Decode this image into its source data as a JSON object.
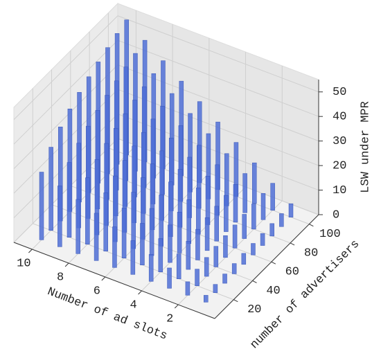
{
  "chart_data": {
    "type": "bar3d",
    "xlabel": "Number of ad slots",
    "ylabel": "number of advertisers",
    "zlabel": "LSW under MPR",
    "x": [
      1,
      2,
      3,
      4,
      5,
      6,
      7,
      8,
      9,
      10
    ],
    "y": [
      10,
      20,
      30,
      40,
      50,
      60,
      70,
      80,
      90,
      100
    ],
    "values": [
      [
        2.8,
        3.4,
        3.8,
        4.2,
        4.5,
        4.7,
        4.9,
        5.1,
        5.3,
        5.5
      ],
      [
        5.5,
        6.8,
        7.7,
        8.4,
        8.9,
        9.4,
        9.9,
        10.3,
        10.7,
        11
      ],
      [
        8.3,
        10.2,
        11.5,
        12.5,
        13.4,
        14.2,
        14.8,
        15.4,
        16,
        16.5
      ],
      [
        11,
        13.6,
        15.3,
        16.7,
        17.9,
        18.9,
        19.8,
        20.6,
        21.3,
        22
      ],
      [
        13.8,
        17,
        19.2,
        20.9,
        22.3,
        23.6,
        24.7,
        25.7,
        26.6,
        27.5
      ],
      [
        16.6,
        20.4,
        23,
        25.1,
        26.8,
        28.3,
        29.7,
        30.9,
        32,
        33
      ],
      [
        19.3,
        23.8,
        26.8,
        29.3,
        31.3,
        33,
        34.6,
        36,
        37.3,
        38.5
      ],
      [
        22.1,
        27.1,
        30.7,
        33.4,
        35.7,
        37.8,
        39.5,
        41.1,
        42.6,
        44
      ],
      [
        24.8,
        30.5,
        34.5,
        37.6,
        40.2,
        42.5,
        44.5,
        46.3,
        48,
        49.5
      ],
      [
        27.6,
        33.9,
        38.3,
        41.8,
        44.7,
        47.2,
        49.4,
        51.4,
        53.3,
        55
      ]
    ],
    "color": "#4f6fd6",
    "xlim": [
      0,
      11
    ],
    "ylim": [
      0,
      110
    ],
    "zlim": [
      0,
      55
    ],
    "xticks": [
      2,
      4,
      6,
      8,
      10
    ],
    "yticks": [
      20,
      40,
      60,
      80,
      100
    ],
    "zticks": [
      0,
      10,
      20,
      30,
      40,
      50
    ],
    "grid": true
  }
}
